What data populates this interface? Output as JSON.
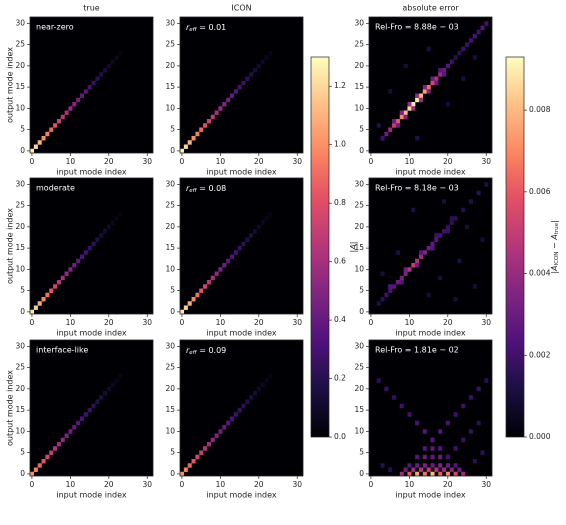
{
  "chart_data": [
    {
      "type": "heatmap",
      "title": "true",
      "annotation": "near-zero",
      "xlabel": "input mode index",
      "ylabel": "output mode index",
      "xlim": [
        -0.5,
        31.5
      ],
      "ylim": [
        -0.5,
        31.5
      ],
      "xticks": [
        0,
        10,
        20,
        30
      ],
      "yticks": [
        0,
        5,
        10,
        15,
        20,
        25,
        30
      ],
      "diagonal": [
        1.25,
        1.2,
        1.1,
        1.0,
        0.95,
        0.88,
        0.8,
        0.72,
        0.66,
        0.6,
        0.55,
        0.5,
        0.45,
        0.4,
        0.35,
        0.3,
        0.26,
        0.22,
        0.18,
        0.14,
        0.11,
        0.08,
        0.06,
        0.04
      ]
    },
    {
      "type": "heatmap",
      "title": "ICON",
      "metric": {
        "name": "r",
        "sub": "eff",
        "sep": " = ",
        "value": 0.01
      },
      "xlabel": "input mode index",
      "xlim": [
        -0.5,
        31.5
      ],
      "ylim": [
        -0.5,
        31.5
      ],
      "xticks": [
        0,
        10,
        20,
        30
      ],
      "yticks": [
        0,
        5,
        10,
        15,
        20,
        25,
        30
      ],
      "diagonal": [
        1.25,
        1.2,
        1.1,
        1.0,
        0.95,
        0.88,
        0.8,
        0.72,
        0.66,
        0.6,
        0.55,
        0.5,
        0.45,
        0.4,
        0.35,
        0.3,
        0.26,
        0.22,
        0.18,
        0.14,
        0.11,
        0.08,
        0.06,
        0.04
      ]
    },
    {
      "type": "heatmap",
      "title": "absolute error",
      "annotation": "Rel-Fro = 8.88e − 03",
      "xlabel": "input mode index",
      "xlim": [
        -0.5,
        31.5
      ],
      "ylim": [
        -0.5,
        31.5
      ],
      "xticks": [
        0,
        10,
        20,
        30
      ],
      "yticks": [
        0,
        5,
        10,
        15,
        20,
        25,
        30
      ],
      "cells": {
        "x": [
          3,
          4,
          5,
          6,
          7,
          8,
          9,
          10,
          11,
          12,
          13,
          14,
          15,
          16,
          17,
          18,
          19,
          20,
          21,
          22,
          23,
          24,
          25,
          26,
          27,
          28,
          29,
          30,
          6,
          8,
          10,
          12,
          14,
          16,
          18,
          7,
          9,
          11,
          13,
          15,
          17,
          19,
          2,
          5,
          12,
          20,
          24,
          9,
          15,
          27
        ],
        "y": [
          3,
          4,
          5,
          6,
          7,
          8,
          9,
          10,
          11,
          12,
          13,
          14,
          15,
          16,
          17,
          18,
          19,
          20,
          21,
          22,
          23,
          24,
          25,
          26,
          27,
          28,
          29,
          30,
          7,
          9,
          11,
          13,
          15,
          17,
          19,
          6,
          8,
          10,
          12,
          14,
          16,
          18,
          6,
          14,
          3,
          11,
          17,
          20,
          24,
          22
        ],
        "values": [
          0.002,
          0.003,
          0.004,
          0.005,
          0.006,
          0.007,
          0.008,
          0.0085,
          0.009,
          0.0088,
          0.008,
          0.0075,
          0.0065,
          0.0055,
          0.0045,
          0.004,
          0.003,
          0.0025,
          0.002,
          0.0015,
          0.0015,
          0.002,
          0.0018,
          0.002,
          0.0022,
          0.002,
          0.0025,
          0.002,
          0.003,
          0.0035,
          0.004,
          0.004,
          0.0035,
          0.003,
          0.0025,
          0.003,
          0.0035,
          0.004,
          0.004,
          0.0035,
          0.003,
          0.0025,
          0.0012,
          0.001,
          0.0012,
          0.001,
          0.0011,
          0.001,
          0.0012,
          0.001
        ]
      }
    },
    {
      "type": "heatmap",
      "annotation": "moderate",
      "xlabel": "input mode index",
      "ylabel": "output mode index",
      "xlim": [
        -0.5,
        31.5
      ],
      "ylim": [
        -0.5,
        31.5
      ],
      "xticks": [
        0,
        10,
        20,
        30
      ],
      "yticks": [
        0,
        5,
        10,
        15,
        20,
        25,
        30
      ],
      "diagonal": [
        1.25,
        1.18,
        1.08,
        0.98,
        0.9,
        0.82,
        0.74,
        0.66,
        0.6,
        0.54,
        0.48,
        0.43,
        0.38,
        0.33,
        0.29,
        0.25,
        0.21,
        0.18,
        0.15,
        0.12,
        0.09,
        0.07,
        0.05,
        0.04
      ]
    },
    {
      "type": "heatmap",
      "metric": {
        "name": "r",
        "sub": "eff",
        "sep": " = ",
        "value": 0.08
      },
      "xlabel": "input mode index",
      "xlim": [
        -0.5,
        31.5
      ],
      "ylim": [
        -0.5,
        31.5
      ],
      "xticks": [
        0,
        10,
        20,
        30
      ],
      "yticks": [
        0,
        5,
        10,
        15,
        20,
        25,
        30
      ],
      "diagonal": [
        1.25,
        1.18,
        1.08,
        0.98,
        0.9,
        0.82,
        0.74,
        0.66,
        0.6,
        0.54,
        0.48,
        0.43,
        0.38,
        0.33,
        0.29,
        0.25,
        0.21,
        0.18,
        0.15,
        0.12,
        0.09,
        0.07,
        0.05,
        0.04
      ]
    },
    {
      "type": "heatmap",
      "annotation": "Rel-Fro = 8.18e − 03",
      "xlabel": "input mode index",
      "xlim": [
        -0.5,
        31.5
      ],
      "ylim": [
        -0.5,
        31.5
      ],
      "xticks": [
        0,
        10,
        20,
        30
      ],
      "yticks": [
        0,
        5,
        10,
        15,
        20,
        25,
        30
      ],
      "cells": {
        "x": [
          2,
          3,
          4,
          5,
          6,
          7,
          8,
          9,
          10,
          11,
          12,
          13,
          14,
          15,
          16,
          17,
          18,
          19,
          20,
          21,
          22,
          24,
          26,
          28,
          30,
          5,
          9,
          13,
          17,
          21,
          8,
          12,
          16,
          20,
          3,
          7,
          15,
          19,
          23,
          25,
          27,
          11,
          18,
          22,
          29
        ],
        "y": [
          2,
          3,
          4,
          5,
          6,
          7,
          8,
          9,
          10,
          11,
          12,
          13,
          14,
          15,
          16,
          17,
          18,
          19,
          20,
          21,
          22,
          24,
          26,
          28,
          30,
          6,
          10,
          14,
          18,
          22,
          7,
          11,
          15,
          19,
          9,
          14,
          4,
          26,
          12,
          20,
          6,
          24,
          8,
          3,
          17
        ],
        "values": [
          0.0012,
          0.0015,
          0.002,
          0.0022,
          0.0025,
          0.003,
          0.0032,
          0.0035,
          0.0045,
          0.005,
          0.0045,
          0.004,
          0.0035,
          0.003,
          0.0028,
          0.0025,
          0.0022,
          0.002,
          0.0018,
          0.0016,
          0.0015,
          0.0014,
          0.0013,
          0.0015,
          0.0012,
          0.0025,
          0.003,
          0.0025,
          0.002,
          0.0015,
          0.0025,
          0.003,
          0.0025,
          0.0018,
          0.001,
          0.0012,
          0.001,
          0.0011,
          0.0012,
          0.001,
          0.001,
          0.0012,
          0.0011,
          0.001,
          0.001
        ]
      }
    },
    {
      "type": "heatmap",
      "annotation": "interface-like",
      "xlabel": "input mode index",
      "ylabel": "output mode index",
      "xlim": [
        -0.5,
        31.5
      ],
      "ylim": [
        -0.5,
        31.5
      ],
      "xticks": [
        0,
        10,
        20,
        30
      ],
      "yticks": [
        0,
        5,
        10,
        15,
        20,
        25,
        30
      ],
      "diagonal": [
        1.0,
        0.95,
        0.88,
        0.82,
        0.76,
        0.7,
        0.64,
        0.58,
        0.53,
        0.48,
        0.44,
        0.4,
        0.36,
        0.32,
        0.28,
        0.25,
        0.22,
        0.19,
        0.16,
        0.13,
        0.1,
        0.08,
        0.06,
        0.04
      ]
    },
    {
      "type": "heatmap",
      "metric": {
        "name": "r",
        "sub": "eff",
        "sep": " = ",
        "value": 0.09
      },
      "xlabel": "input mode index",
      "xlim": [
        -0.5,
        31.5
      ],
      "ylim": [
        -0.5,
        31.5
      ],
      "xticks": [
        0,
        10,
        20,
        30
      ],
      "yticks": [
        0,
        5,
        10,
        15,
        20,
        25,
        30
      ],
      "diagonal": [
        1.0,
        0.95,
        0.88,
        0.82,
        0.76,
        0.7,
        0.64,
        0.58,
        0.53,
        0.48,
        0.44,
        0.4,
        0.36,
        0.32,
        0.28,
        0.25,
        0.22,
        0.19,
        0.16,
        0.13,
        0.1,
        0.08,
        0.06,
        0.04
      ]
    },
    {
      "type": "heatmap",
      "annotation": "Rel-Fro = 1.81e − 02",
      "xlabel": "input mode index",
      "xlim": [
        -0.5,
        31.5
      ],
      "ylim": [
        -0.5,
        31.5
      ],
      "xticks": [
        0,
        10,
        20,
        30
      ],
      "yticks": [
        0,
        5,
        10,
        15,
        20,
        25,
        30
      ],
      "cells": {
        "x": [
          8,
          10,
          12,
          14,
          16,
          18,
          20,
          22,
          24,
          9,
          11,
          13,
          15,
          17,
          19,
          21,
          23,
          10,
          12,
          14,
          16,
          18,
          20,
          22,
          12,
          14,
          16,
          18,
          20,
          14,
          16,
          18,
          16,
          18,
          20,
          22,
          24,
          26,
          28,
          30,
          16,
          14,
          12,
          10,
          8,
          6,
          4,
          2,
          20,
          22,
          24,
          26,
          28,
          5,
          3,
          27,
          29
        ],
        "y": [
          0,
          0,
          0,
          0,
          0,
          0,
          0,
          0,
          0,
          1,
          1,
          1,
          1,
          1,
          1,
          1,
          1,
          2,
          2,
          2,
          2,
          2,
          2,
          2,
          4,
          4,
          4,
          4,
          4,
          6,
          6,
          6,
          8,
          10,
          12,
          14,
          16,
          18,
          20,
          22,
          8,
          10,
          12,
          14,
          16,
          18,
          20,
          22,
          4,
          6,
          8,
          10,
          12,
          1,
          2,
          3,
          5
        ],
        "values": [
          0.004,
          0.006,
          0.0075,
          0.0065,
          0.008,
          0.006,
          0.007,
          0.0055,
          0.004,
          0.003,
          0.004,
          0.0045,
          0.005,
          0.0045,
          0.004,
          0.0035,
          0.003,
          0.0025,
          0.003,
          0.0035,
          0.003,
          0.0035,
          0.003,
          0.0025,
          0.0025,
          0.003,
          0.0028,
          0.003,
          0.0025,
          0.0025,
          0.0028,
          0.0025,
          0.0025,
          0.0025,
          0.0022,
          0.002,
          0.002,
          0.0018,
          0.0018,
          0.0015,
          0.0025,
          0.0025,
          0.0022,
          0.002,
          0.002,
          0.0018,
          0.0018,
          0.0015,
          0.002,
          0.002,
          0.0018,
          0.0018,
          0.0015,
          0.0015,
          0.0015,
          0.0015,
          0.0015
        ]
      }
    },
    {
      "type": "colorbar",
      "cmap": "magma",
      "vlim": [
        0,
        1.3
      ],
      "ticks": [
        {
          "value": 0,
          "label": "0.0"
        },
        {
          "value": 0.2,
          "label": "0.2"
        },
        {
          "value": 0.4,
          "label": "0.4"
        },
        {
          "value": 0.6,
          "label": "0.6"
        },
        {
          "value": 0.8,
          "label": "0.8"
        },
        {
          "value": 1,
          "label": "1.0"
        },
        {
          "value": 1.2,
          "label": "1.2"
        }
      ],
      "label_parts": [
        {
          "text": "|A|"
        }
      ]
    },
    {
      "type": "colorbar",
      "cmap": "magma",
      "vlim": [
        0,
        0.0093
      ],
      "ticks": [
        {
          "value": 0,
          "label": "0.000"
        },
        {
          "value": 0.002,
          "label": "0.002"
        },
        {
          "value": 0.004,
          "label": "0.004"
        },
        {
          "value": 0.006,
          "label": "0.006"
        },
        {
          "value": 0.008,
          "label": "0.008"
        }
      ],
      "label_parts": [
        {
          "text": "|A"
        },
        {
          "text": "ICON",
          "sub": true
        },
        {
          "text": " − A"
        },
        {
          "text": "true",
          "sub": true
        },
        {
          "text": "|"
        }
      ]
    }
  ]
}
